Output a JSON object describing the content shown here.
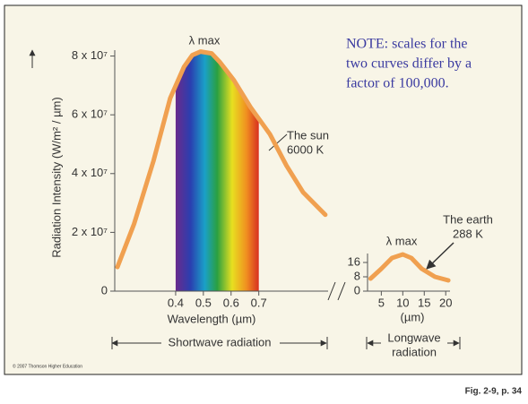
{
  "note": [
    "NOTE: scales for the",
    "two curves differ by a",
    "factor of 100,000."
  ],
  "copyright": "© 2007 Thomson Higher Education",
  "figure_ref": "Fig. 2-9, p. 34",
  "chart_data": [
    {
      "type": "line",
      "y_label": "Radiation Intensity (W/m² / µm)",
      "x_label": "Wavelength (µm)",
      "peak_label": "λ max",
      "curve_label": [
        "The sun",
        "6000 K"
      ],
      "band_label": "Shortwave radiation",
      "color": "#f0a050",
      "spectrum": true,
      "x": [
        0.19,
        0.25,
        0.32,
        0.38,
        0.43,
        0.46,
        0.49,
        0.53,
        0.56,
        0.61,
        0.67,
        0.74,
        0.8,
        0.86,
        0.94
      ],
      "values": [
        8200000,
        22900000,
        44300000,
        65600000,
        76300000,
        80300000,
        81500000,
        80900000,
        77900000,
        71800000,
        62600000,
        53400000,
        42700000,
        33600000,
        26000000
      ],
      "xlim": [
        0.19,
        0.95
      ],
      "xticks": [
        0.4,
        0.5,
        0.6,
        0.7
      ],
      "ylim": [
        0,
        82000000
      ],
      "yticks": [
        0,
        {
          "value": 20000000,
          "label": "2 x 10⁷"
        },
        {
          "value": 40000000,
          "label": "4 x 10⁷"
        },
        {
          "value": 60000000,
          "label": "6 x 10⁷"
        },
        {
          "value": 80000000,
          "label": "8 x 10⁷"
        }
      ],
      "grid": false
    },
    {
      "type": "line",
      "x_label": "(µm)",
      "peak_label": "λ max",
      "curve_label": [
        "The earth",
        "288 K"
      ],
      "band_label": [
        "Longwave",
        "radiation"
      ],
      "color": "#f0a050",
      "spectrum": false,
      "x": [
        2.5,
        5,
        7.5,
        10,
        12,
        14.4,
        17.5,
        20.6
      ],
      "values": [
        7,
        12.5,
        18.5,
        20.5,
        18.5,
        12.5,
        8,
        6
      ],
      "xlim": [
        2,
        21
      ],
      "xticks": [
        5,
        10,
        15,
        20
      ],
      "ylim": [
        0,
        21
      ],
      "yticks": [
        0,
        8,
        16
      ],
      "grid": false
    }
  ]
}
